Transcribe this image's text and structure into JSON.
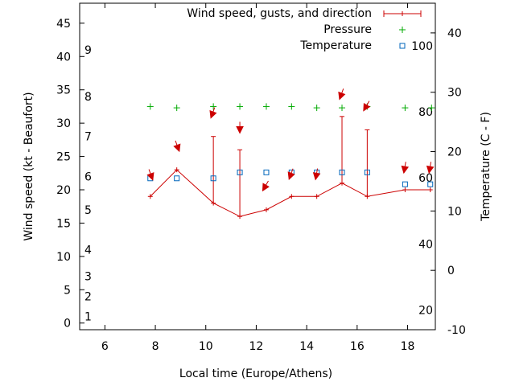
{
  "chart_data": {
    "type": "line",
    "x_label": "Local time (Europe/Athens)",
    "y_label_left": "Wind speed (kt - Beaufort)",
    "y_label_right": "Temperature (C - F)",
    "xlim": [
      5.0,
      19.1
    ],
    "ylim_left": [
      -1,
      48
    ],
    "ylim_right": [
      -10,
      45
    ],
    "x_ticks": [
      6,
      8,
      10,
      12,
      14,
      16,
      18
    ],
    "y_ticks_left": [
      0,
      5,
      10,
      15,
      20,
      25,
      30,
      35,
      40,
      45
    ],
    "y_ticks_right": [
      -10,
      0,
      10,
      20,
      30,
      40
    ],
    "beaufort_labels": [
      {
        "label": "1",
        "kt": 1
      },
      {
        "label": "2",
        "kt": 4
      },
      {
        "label": "3",
        "kt": 7
      },
      {
        "label": "4",
        "kt": 11
      },
      {
        "label": "5",
        "kt": 17
      },
      {
        "label": "6",
        "kt": 22
      },
      {
        "label": "7",
        "kt": 28
      },
      {
        "label": "8",
        "kt": 34
      },
      {
        "label": "9",
        "kt": 41
      }
    ],
    "fahrenheit_labels": [
      {
        "label": "20",
        "celsius": -6.7
      },
      {
        "label": "40",
        "celsius": 4.4
      },
      {
        "label": "60",
        "celsius": 15.6
      },
      {
        "label": "80",
        "celsius": 26.7
      },
      {
        "label": "100",
        "celsius": 37.8
      }
    ],
    "legend": [
      {
        "label": "Wind speed, gusts, and direction",
        "color": "#cc0000",
        "marker": "errorbar"
      },
      {
        "label": "Pressure",
        "color": "#00aa00",
        "marker": "plus"
      },
      {
        "label": "Temperature",
        "color": "#0066bb",
        "marker": "square"
      }
    ],
    "wind": [
      {
        "x": 7.8,
        "speed": 19,
        "gust": null,
        "dir_y": 22.5,
        "dir_angle": 160
      },
      {
        "x": 8.85,
        "speed": 23,
        "gust": null,
        "dir_y": 26.8,
        "dir_angle": 160
      },
      {
        "x": 10.3,
        "speed": 18,
        "gust": 28,
        "dir_y": 31.8,
        "dir_angle": 200
      },
      {
        "x": 11.35,
        "speed": 16,
        "gust": 26,
        "dir_y": 29.6,
        "dir_angle": 180
      },
      {
        "x": 12.4,
        "speed": 17,
        "gust": null,
        "dir_y": 20.8,
        "dir_angle": 210
      },
      {
        "x": 13.4,
        "speed": 19,
        "gust": null,
        "dir_y": 22.6,
        "dir_angle": 200
      },
      {
        "x": 14.4,
        "speed": 19,
        "gust": null,
        "dir_y": 22.6,
        "dir_angle": 190
      },
      {
        "x": 15.4,
        "speed": 21,
        "gust": 31,
        "dir_y": 34.6,
        "dir_angle": 200
      },
      {
        "x": 16.4,
        "speed": 19,
        "gust": 29,
        "dir_y": 32.8,
        "dir_angle": 210
      },
      {
        "x": 17.9,
        "speed": 20,
        "gust": null,
        "dir_y": 23.6,
        "dir_angle": 190
      },
      {
        "x": 18.9,
        "speed": 20,
        "gust": null,
        "dir_y": 23.6,
        "dir_angle": 190
      }
    ],
    "pressure_y": [
      {
        "x": 7.8,
        "y": 32.5
      },
      {
        "x": 8.85,
        "y": 32.3
      },
      {
        "x": 10.3,
        "y": 32.5
      },
      {
        "x": 11.35,
        "y": 32.5
      },
      {
        "x": 12.4,
        "y": 32.5
      },
      {
        "x": 13.4,
        "y": 32.5
      },
      {
        "x": 14.4,
        "y": 32.3
      },
      {
        "x": 15.4,
        "y": 32.3
      },
      {
        "x": 16.4,
        "y": 32.5
      },
      {
        "x": 17.9,
        "y": 32.3
      },
      {
        "x": 18.95,
        "y": 32.3
      }
    ],
    "temperature_c": [
      {
        "x": 7.8,
        "y": 15.5
      },
      {
        "x": 8.85,
        "y": 15.5
      },
      {
        "x": 10.3,
        "y": 15.5
      },
      {
        "x": 11.35,
        "y": 16.5
      },
      {
        "x": 12.4,
        "y": 16.5
      },
      {
        "x": 13.4,
        "y": 16.5
      },
      {
        "x": 14.4,
        "y": 16.5
      },
      {
        "x": 15.4,
        "y": 16.5
      },
      {
        "x": 16.4,
        "y": 16.5
      },
      {
        "x": 17.9,
        "y": 14.5
      },
      {
        "x": 18.9,
        "y": 14.5
      }
    ],
    "colors": {
      "wind": "#cc0000",
      "pressure": "#00aa00",
      "temperature": "#0066bb",
      "frame": "#000000"
    }
  }
}
